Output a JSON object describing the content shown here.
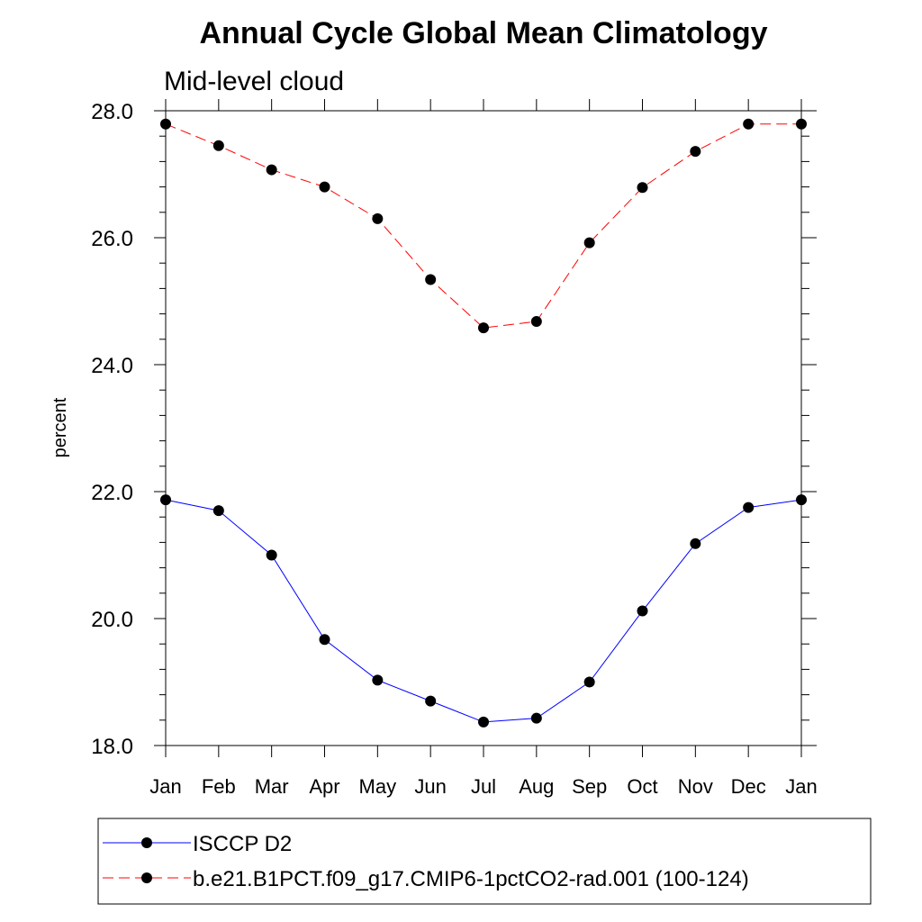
{
  "chart_data": {
    "type": "line",
    "title": "Annual Cycle Global Mean Climatology",
    "subtitle": "Mid-level cloud",
    "xlabel": "",
    "ylabel": "percent",
    "categories": [
      "Jan",
      "Feb",
      "Mar",
      "Apr",
      "May",
      "Jun",
      "Jul",
      "Aug",
      "Sep",
      "Oct",
      "Nov",
      "Dec",
      "Jan"
    ],
    "ylim": [
      18.0,
      28.0
    ],
    "yticks": [
      "18.0",
      "20.0",
      "22.0",
      "24.0",
      "26.0",
      "28.0"
    ],
    "grid": false,
    "legend_position": "bottom",
    "series": [
      {
        "name": "ISCCP D2",
        "color": "#0000ff",
        "line_style": "solid",
        "marker": "filled-circle",
        "values": [
          21.87,
          21.7,
          21.0,
          19.67,
          19.03,
          18.7,
          18.37,
          18.43,
          19.0,
          20.12,
          21.18,
          21.75,
          21.87
        ]
      },
      {
        "name": "b.e21.B1PCT.f09_g17.CMIP6-1pctCO2-rad.001 (100-124)",
        "color": "#ff0000",
        "line_style": "dashed",
        "marker": "filled-circle",
        "values": [
          27.79,
          27.45,
          27.07,
          26.8,
          26.3,
          25.34,
          24.58,
          24.68,
          25.92,
          26.79,
          27.36,
          27.79,
          27.79
        ]
      }
    ]
  }
}
